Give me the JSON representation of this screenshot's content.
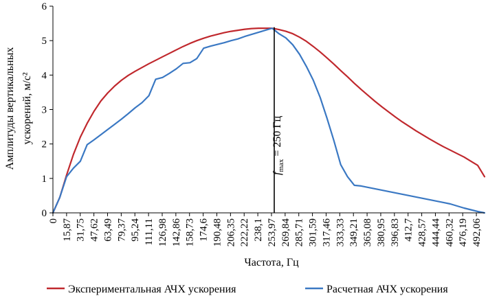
{
  "chart_data": {
    "type": "line",
    "xlabel": "Частота, Гц",
    "ylabel_line1": "Амплитуды вертикальных",
    "ylabel_line2": "ускорений, м/с²",
    "xlim": [
      0,
      500
    ],
    "ylim": [
      0,
      6
    ],
    "yticks": [
      0,
      1,
      2,
      3,
      4,
      5,
      6
    ],
    "xtick_labels": [
      "0",
      "15,87",
      "31,75",
      "47,62",
      "63,49",
      "79,37",
      "95,24",
      "111,11",
      "126,98",
      "142,86",
      "158,73",
      "174,6",
      "190,48",
      "206,35",
      "222,22",
      "238,1",
      "253,97",
      "269,84",
      "285,71",
      "301,59",
      "317,46",
      "333,33",
      "349,21",
      "365,08",
      "380,95",
      "396,83",
      "412,7",
      "428,57",
      "444,44",
      "460,32",
      "476,19",
      "492,06"
    ],
    "annotation": {
      "x": 250,
      "label_f": "f",
      "label_sub": "max",
      "label_rest": " = 250 Гц"
    },
    "series": [
      {
        "name": "Экспериментальная АЧХ ускорения",
        "color": "#c0282d",
        "x": [
          0,
          7.94,
          15.87,
          23.81,
          31.75,
          39.68,
          47.62,
          55.56,
          63.49,
          71.43,
          79.37,
          87.3,
          95.24,
          103.17,
          111.11,
          119.05,
          126.98,
          134.92,
          142.86,
          150.79,
          158.73,
          166.67,
          174.6,
          182.54,
          190.48,
          198.41,
          206.35,
          214.29,
          222.22,
          230.16,
          238.1,
          246.03,
          253.97,
          261.9,
          269.84,
          277.78,
          285.71,
          293.65,
          301.59,
          309.52,
          317.46,
          325.4,
          333.33,
          341.27,
          349.21,
          357.14,
          365.08,
          373.02,
          380.95,
          388.89,
          396.83,
          404.76,
          412.7,
          420.63,
          428.57,
          436.51,
          444.44,
          452.38,
          460.32,
          468.25,
          476.19,
          484.13,
          492.06,
          500
        ],
        "y": [
          0,
          0.45,
          1.1,
          1.7,
          2.2,
          2.6,
          2.95,
          3.25,
          3.48,
          3.68,
          3.85,
          3.99,
          4.11,
          4.22,
          4.33,
          4.43,
          4.53,
          4.63,
          4.73,
          4.83,
          4.92,
          5.0,
          5.07,
          5.13,
          5.18,
          5.23,
          5.27,
          5.3,
          5.33,
          5.35,
          5.36,
          5.36,
          5.36,
          5.32,
          5.27,
          5.2,
          5.1,
          4.98,
          4.83,
          4.67,
          4.5,
          4.32,
          4.13,
          3.95,
          3.76,
          3.58,
          3.41,
          3.24,
          3.08,
          2.93,
          2.78,
          2.64,
          2.51,
          2.38,
          2.26,
          2.14,
          2.03,
          1.92,
          1.82,
          1.72,
          1.62,
          1.5,
          1.38,
          1.05
        ]
      },
      {
        "name": "Расчетная АЧХ ускорения",
        "color": "#3a78c3",
        "x": [
          0,
          7.94,
          15.87,
          23.81,
          31.75,
          39.68,
          47.62,
          55.56,
          63.49,
          71.43,
          79.37,
          87.3,
          95.24,
          103.17,
          111.11,
          119.05,
          126.98,
          134.92,
          142.86,
          150.79,
          158.73,
          166.67,
          174.6,
          182.54,
          190.48,
          198.41,
          206.35,
          214.29,
          222.22,
          230.16,
          238.1,
          246.03,
          253.97,
          261.9,
          269.84,
          277.78,
          285.71,
          293.65,
          301.59,
          309.52,
          317.46,
          325.4,
          333.33,
          341.27,
          349.21,
          357.14,
          365.08,
          373.02,
          380.95,
          388.89,
          396.83,
          404.76,
          412.7,
          420.63,
          428.57,
          436.51,
          444.44,
          452.38,
          460.32,
          468.25,
          476.19,
          484.13,
          492.06,
          500
        ],
        "y": [
          0,
          0.45,
          1.05,
          1.3,
          1.5,
          1.98,
          2.12,
          2.27,
          2.42,
          2.57,
          2.72,
          2.88,
          3.05,
          3.2,
          3.4,
          3.88,
          3.93,
          4.05,
          4.18,
          4.34,
          4.36,
          4.48,
          4.78,
          4.84,
          4.89,
          4.94,
          5.0,
          5.05,
          5.12,
          5.18,
          5.24,
          5.3,
          5.36,
          5.2,
          5.08,
          4.88,
          4.6,
          4.25,
          3.85,
          3.35,
          2.75,
          2.1,
          1.4,
          1.05,
          0.8,
          0.78,
          0.74,
          0.7,
          0.66,
          0.62,
          0.58,
          0.54,
          0.5,
          0.46,
          0.42,
          0.38,
          0.34,
          0.3,
          0.26,
          0.2,
          0.14,
          0.09,
          0.04,
          0.0
        ]
      }
    ],
    "legend": "bottom"
  }
}
